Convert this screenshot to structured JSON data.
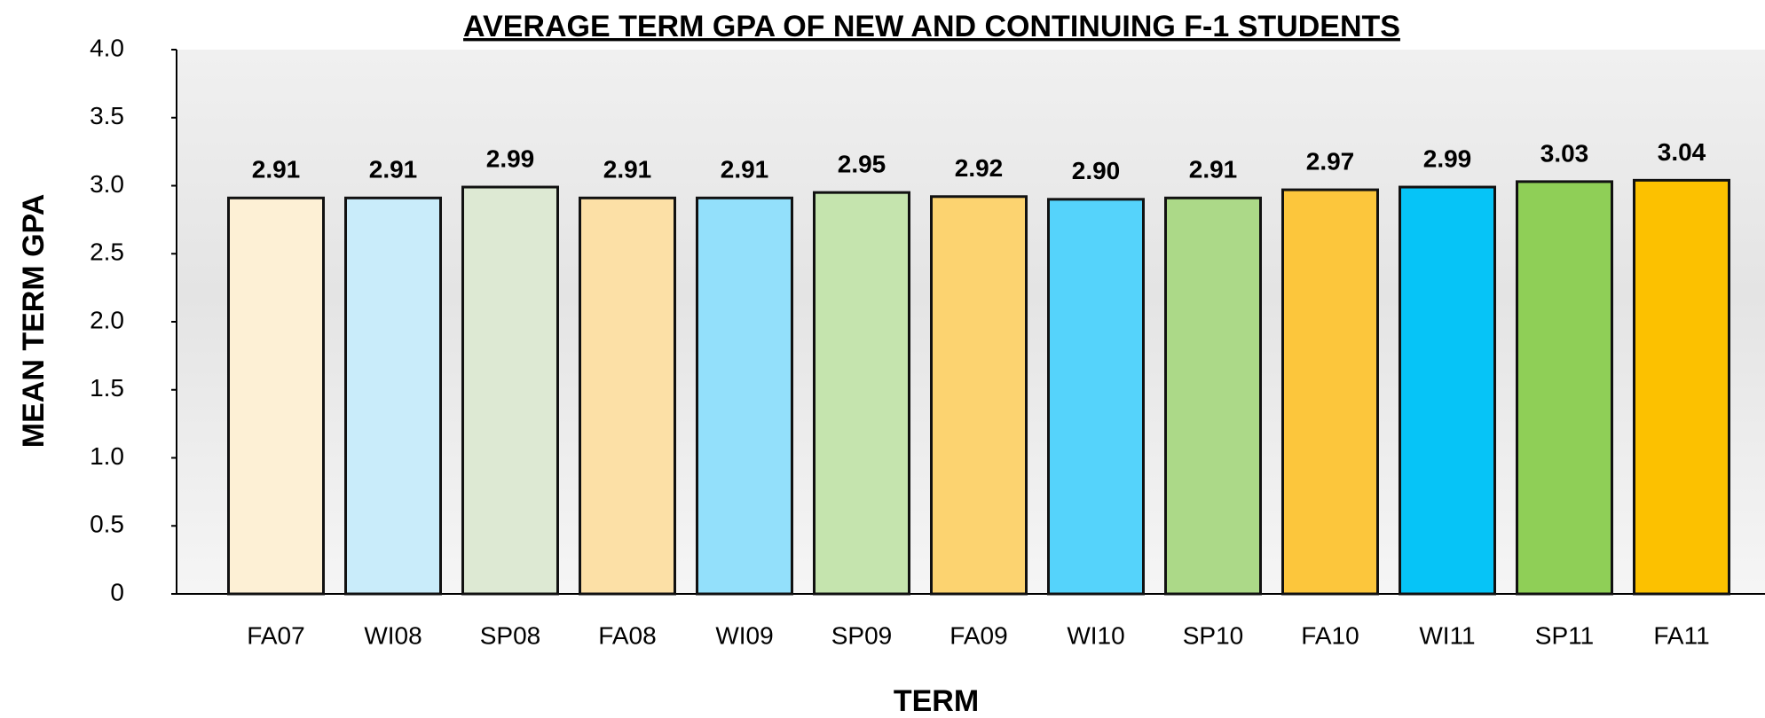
{
  "chart_data": {
    "type": "bar",
    "title": "AVERAGE TERM GPA OF NEW AND CONTINUING F-1 STUDENTS",
    "xlabel": "TERM",
    "ylabel": "MEAN TERM GPA",
    "categories": [
      "FA07",
      "WI08",
      "SP08",
      "FA08",
      "WI09",
      "SP09",
      "FA09",
      "WI10",
      "SP10",
      "FA10",
      "WI11",
      "SP11",
      "FA11"
    ],
    "values": [
      2.91,
      2.91,
      2.99,
      2.91,
      2.91,
      2.95,
      2.92,
      2.9,
      2.91,
      2.97,
      2.99,
      3.03,
      3.04
    ],
    "value_labels": [
      "2.91",
      "2.91",
      "2.99",
      "2.91",
      "2.91",
      "2.95",
      "2.92",
      "2.90",
      "2.91",
      "2.97",
      "2.99",
      "3.03",
      "3.04"
    ],
    "colors": [
      "#fdf0d5",
      "#c9ecfa",
      "#dde9d3",
      "#fce0a6",
      "#93e0fb",
      "#c5e4ae",
      "#fcd370",
      "#55d3fb",
      "#acd988",
      "#fcc63c",
      "#06c4f7",
      "#8fcf57",
      "#fcc100"
    ],
    "ylim": [
      0,
      4
    ],
    "yticks": [
      0,
      0.5,
      {
        "value": 1,
        "label": "1.0"
      },
      1.5,
      {
        "value": 2,
        "label": "2.0"
      },
      2.5,
      {
        "value": 3,
        "label": "3.0"
      },
      3.5,
      {
        "value": 4,
        "label": "4.0"
      }
    ]
  }
}
